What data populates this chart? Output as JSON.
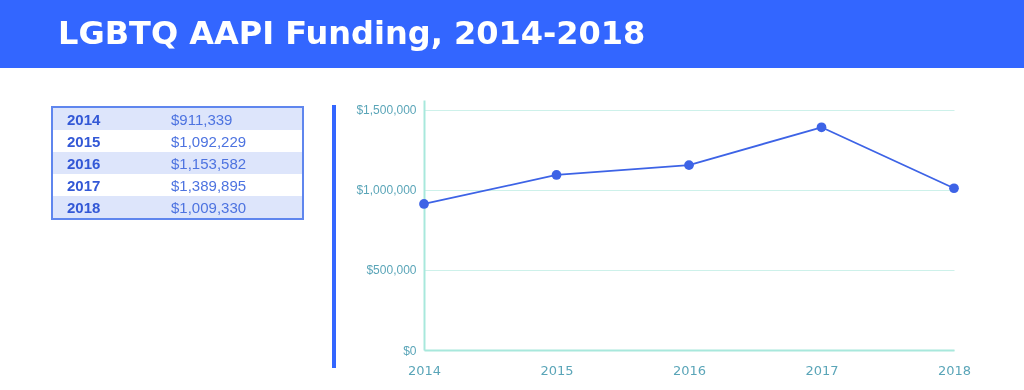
{
  "chart_data": {
    "type": "line",
    "title": "LGBTQ AAPI Funding, 2014-2018",
    "categories": [
      "2014",
      "2015",
      "2016",
      "2017",
      "2018"
    ],
    "series": [
      {
        "color": "#3d63e6",
        "values": [
          911339,
          1092229,
          1153582,
          1389895,
          1009330
        ]
      }
    ],
    "value_labels": [
      "$911,339",
      "$1,092,229",
      "$1,153,582",
      "$1,389,895",
      "$1,009,330"
    ],
    "ylim": [
      0,
      1560000
    ],
    "yticks": [
      {
        "value": 0,
        "label": "$0"
      },
      {
        "value": 500000,
        "label": "$500,000"
      },
      {
        "value": 1000000,
        "label": "$1,000,000"
      },
      {
        "value": 1500000,
        "label": "$1,500,000"
      }
    ],
    "grid": "y",
    "marker": "circle",
    "line_style": "solid"
  }
}
